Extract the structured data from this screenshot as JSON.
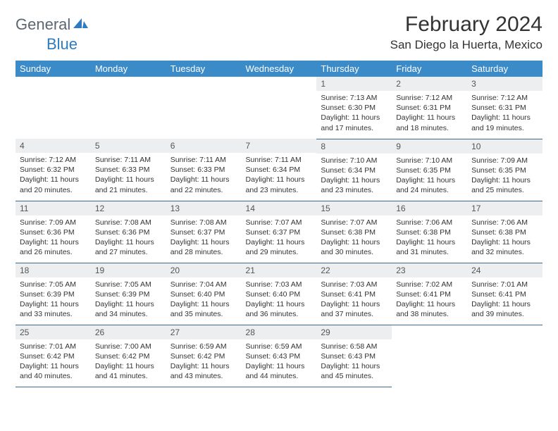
{
  "logo": {
    "text1": "General",
    "text2": "Blue"
  },
  "title": "February 2024",
  "location": "San Diego la Huerta, Mexico",
  "colors": {
    "header_bg": "#3b8bc9",
    "header_text": "#ffffff",
    "daynum_bg": "#eceeef",
    "border": "#3b6a93",
    "logo_gray": "#5b6770",
    "logo_blue": "#2f7bbf"
  },
  "dow": [
    "Sunday",
    "Monday",
    "Tuesday",
    "Wednesday",
    "Thursday",
    "Friday",
    "Saturday"
  ],
  "weeks": [
    [
      null,
      null,
      null,
      null,
      {
        "n": "1",
        "sr": "7:13 AM",
        "ss": "6:30 PM",
        "d1": "Daylight: 11 hours",
        "d2": "and 17 minutes."
      },
      {
        "n": "2",
        "sr": "7:12 AM",
        "ss": "6:31 PM",
        "d1": "Daylight: 11 hours",
        "d2": "and 18 minutes."
      },
      {
        "n": "3",
        "sr": "7:12 AM",
        "ss": "6:31 PM",
        "d1": "Daylight: 11 hours",
        "d2": "and 19 minutes."
      }
    ],
    [
      {
        "n": "4",
        "sr": "7:12 AM",
        "ss": "6:32 PM",
        "d1": "Daylight: 11 hours",
        "d2": "and 20 minutes."
      },
      {
        "n": "5",
        "sr": "7:11 AM",
        "ss": "6:33 PM",
        "d1": "Daylight: 11 hours",
        "d2": "and 21 minutes."
      },
      {
        "n": "6",
        "sr": "7:11 AM",
        "ss": "6:33 PM",
        "d1": "Daylight: 11 hours",
        "d2": "and 22 minutes."
      },
      {
        "n": "7",
        "sr": "7:11 AM",
        "ss": "6:34 PM",
        "d1": "Daylight: 11 hours",
        "d2": "and 23 minutes."
      },
      {
        "n": "8",
        "sr": "7:10 AM",
        "ss": "6:34 PM",
        "d1": "Daylight: 11 hours",
        "d2": "and 23 minutes."
      },
      {
        "n": "9",
        "sr": "7:10 AM",
        "ss": "6:35 PM",
        "d1": "Daylight: 11 hours",
        "d2": "and 24 minutes."
      },
      {
        "n": "10",
        "sr": "7:09 AM",
        "ss": "6:35 PM",
        "d1": "Daylight: 11 hours",
        "d2": "and 25 minutes."
      }
    ],
    [
      {
        "n": "11",
        "sr": "7:09 AM",
        "ss": "6:36 PM",
        "d1": "Daylight: 11 hours",
        "d2": "and 26 minutes."
      },
      {
        "n": "12",
        "sr": "7:08 AM",
        "ss": "6:36 PM",
        "d1": "Daylight: 11 hours",
        "d2": "and 27 minutes."
      },
      {
        "n": "13",
        "sr": "7:08 AM",
        "ss": "6:37 PM",
        "d1": "Daylight: 11 hours",
        "d2": "and 28 minutes."
      },
      {
        "n": "14",
        "sr": "7:07 AM",
        "ss": "6:37 PM",
        "d1": "Daylight: 11 hours",
        "d2": "and 29 minutes."
      },
      {
        "n": "15",
        "sr": "7:07 AM",
        "ss": "6:38 PM",
        "d1": "Daylight: 11 hours",
        "d2": "and 30 minutes."
      },
      {
        "n": "16",
        "sr": "7:06 AM",
        "ss": "6:38 PM",
        "d1": "Daylight: 11 hours",
        "d2": "and 31 minutes."
      },
      {
        "n": "17",
        "sr": "7:06 AM",
        "ss": "6:38 PM",
        "d1": "Daylight: 11 hours",
        "d2": "and 32 minutes."
      }
    ],
    [
      {
        "n": "18",
        "sr": "7:05 AM",
        "ss": "6:39 PM",
        "d1": "Daylight: 11 hours",
        "d2": "and 33 minutes."
      },
      {
        "n": "19",
        "sr": "7:05 AM",
        "ss": "6:39 PM",
        "d1": "Daylight: 11 hours",
        "d2": "and 34 minutes."
      },
      {
        "n": "20",
        "sr": "7:04 AM",
        "ss": "6:40 PM",
        "d1": "Daylight: 11 hours",
        "d2": "and 35 minutes."
      },
      {
        "n": "21",
        "sr": "7:03 AM",
        "ss": "6:40 PM",
        "d1": "Daylight: 11 hours",
        "d2": "and 36 minutes."
      },
      {
        "n": "22",
        "sr": "7:03 AM",
        "ss": "6:41 PM",
        "d1": "Daylight: 11 hours",
        "d2": "and 37 minutes."
      },
      {
        "n": "23",
        "sr": "7:02 AM",
        "ss": "6:41 PM",
        "d1": "Daylight: 11 hours",
        "d2": "and 38 minutes."
      },
      {
        "n": "24",
        "sr": "7:01 AM",
        "ss": "6:41 PM",
        "d1": "Daylight: 11 hours",
        "d2": "and 39 minutes."
      }
    ],
    [
      {
        "n": "25",
        "sr": "7:01 AM",
        "ss": "6:42 PM",
        "d1": "Daylight: 11 hours",
        "d2": "and 40 minutes."
      },
      {
        "n": "26",
        "sr": "7:00 AM",
        "ss": "6:42 PM",
        "d1": "Daylight: 11 hours",
        "d2": "and 41 minutes."
      },
      {
        "n": "27",
        "sr": "6:59 AM",
        "ss": "6:42 PM",
        "d1": "Daylight: 11 hours",
        "d2": "and 43 minutes."
      },
      {
        "n": "28",
        "sr": "6:59 AM",
        "ss": "6:43 PM",
        "d1": "Daylight: 11 hours",
        "d2": "and 44 minutes."
      },
      {
        "n": "29",
        "sr": "6:58 AM",
        "ss": "6:43 PM",
        "d1": "Daylight: 11 hours",
        "d2": "and 45 minutes."
      },
      null,
      null
    ]
  ],
  "labels": {
    "sunrise": "Sunrise: ",
    "sunset": "Sunset: "
  }
}
